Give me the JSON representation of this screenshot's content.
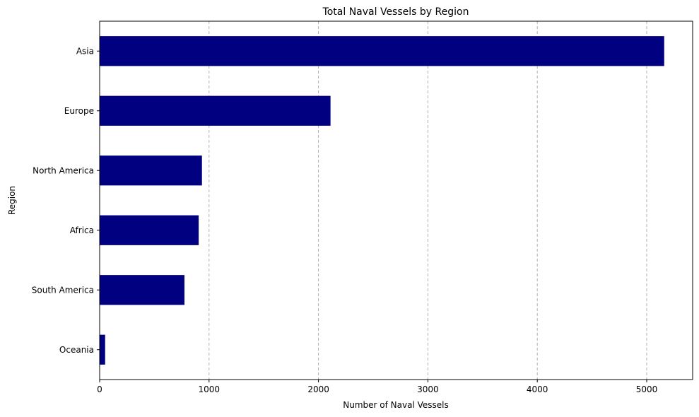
{
  "chart_data": {
    "type": "bar",
    "orientation": "horizontal",
    "title": "Total Naval Vessels by Region",
    "xlabel": "Number of Naval Vessels",
    "ylabel": "Region",
    "categories": [
      "Asia",
      "Europe",
      "North America",
      "Africa",
      "South America",
      "Oceania"
    ],
    "values": [
      5160,
      2110,
      935,
      905,
      775,
      50
    ],
    "xlim": [
      0,
      5420
    ],
    "xticks": [
      0,
      1000,
      2000,
      3000,
      4000,
      5000
    ],
    "grid": "x-dashed",
    "bar_color": "#000080",
    "grid_color": "#b0b0b0"
  }
}
